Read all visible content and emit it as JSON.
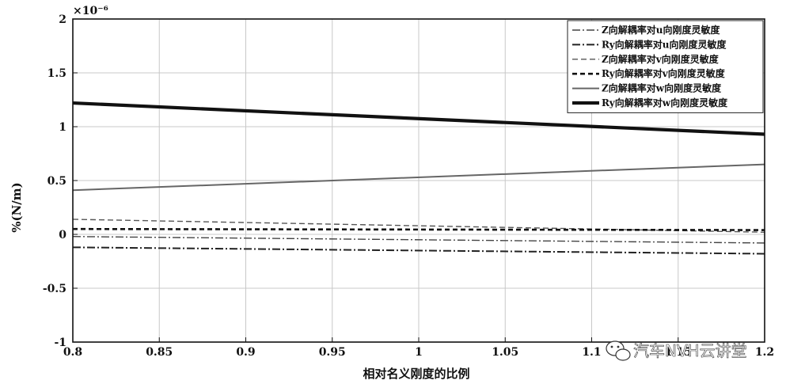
{
  "chart_data": {
    "type": "line",
    "title": "",
    "xlabel": "相对名义刚度的比例",
    "ylabel": "%(N/m)",
    "y_exponent_label": "×10⁻⁶",
    "xlim": [
      0.8,
      1.2
    ],
    "ylim": [
      -1,
      2
    ],
    "x_ticks": [
      "0.8",
      "0.85",
      "0.9",
      "0.95",
      "1",
      "1.05",
      "1.1",
      "1.15",
      "1.2"
    ],
    "y_ticks": [
      "-1",
      "-0.5",
      "0",
      "0.5",
      "1",
      "1.5",
      "2"
    ],
    "x_tick_values": [
      0.8,
      0.85,
      0.9,
      0.95,
      1.0,
      1.05,
      1.1,
      1.15,
      1.2
    ],
    "y_tick_values": [
      -1,
      -0.5,
      0,
      0.5,
      1,
      1.5,
      2
    ],
    "grid": true,
    "legend_position": "top-right",
    "x": [
      0.8,
      1.2
    ],
    "series": [
      {
        "name": "Z向解耦率对u向刚度灵敏度",
        "values": [
          -0.02,
          -0.08
        ],
        "style": "dashdot-thin",
        "color": "#444444"
      },
      {
        "name": "Ry向解耦率对u向刚度灵敏度",
        "values": [
          -0.12,
          -0.18
        ],
        "style": "dashdot-thick",
        "color": "#222222"
      },
      {
        "name": "Z向解耦率对v向刚度灵敏度",
        "values": [
          0.14,
          0.02
        ],
        "style": "dash-thin",
        "color": "#555555"
      },
      {
        "name": "Ry向解耦率对v向刚度灵敏度",
        "values": [
          0.05,
          0.04
        ],
        "style": "dash-thick",
        "color": "#111111"
      },
      {
        "name": "Z向解耦率对w向刚度灵敏度",
        "values": [
          0.41,
          0.65
        ],
        "style": "solid-thin",
        "color": "#666666"
      },
      {
        "name": "Ry向解耦率对w向刚度灵敏度",
        "values": [
          1.22,
          0.93
        ],
        "style": "solid-thick",
        "color": "#111111"
      }
    ]
  },
  "watermark": {
    "text": "汽车NVH云讲堂",
    "icon": "wechat-icon"
  }
}
